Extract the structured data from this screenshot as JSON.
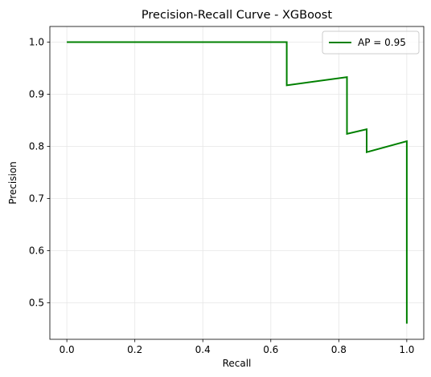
{
  "chart_data": {
    "type": "line",
    "title": "Precision-Recall Curve - XGBoost",
    "xlabel": "Recall",
    "ylabel": "Precision",
    "xlim": [
      -0.05,
      1.05
    ],
    "ylim": [
      0.43,
      1.03
    ],
    "x_ticks": [
      0.0,
      0.2,
      0.4,
      0.6,
      0.8,
      1.0
    ],
    "x_tick_labels": [
      "0.0",
      "0.2",
      "0.4",
      "0.6",
      "0.8",
      "1.0"
    ],
    "y_ticks": [
      0.5,
      0.6,
      0.7,
      0.8,
      0.9,
      1.0
    ],
    "y_tick_labels": [
      "0.5",
      "0.6",
      "0.7",
      "0.8",
      "0.9",
      "1.0"
    ],
    "grid": true,
    "legend_position": "top-right",
    "series": [
      {
        "name": "AP = 0.95",
        "color": "#008000",
        "x": [
          0.0,
          0.647,
          0.647,
          0.824,
          0.824,
          0.882,
          0.882,
          1.0,
          1.0
        ],
        "y": [
          1.0,
          1.0,
          0.917,
          0.933,
          0.824,
          0.833,
          0.789,
          0.81,
          0.46
        ]
      }
    ]
  }
}
